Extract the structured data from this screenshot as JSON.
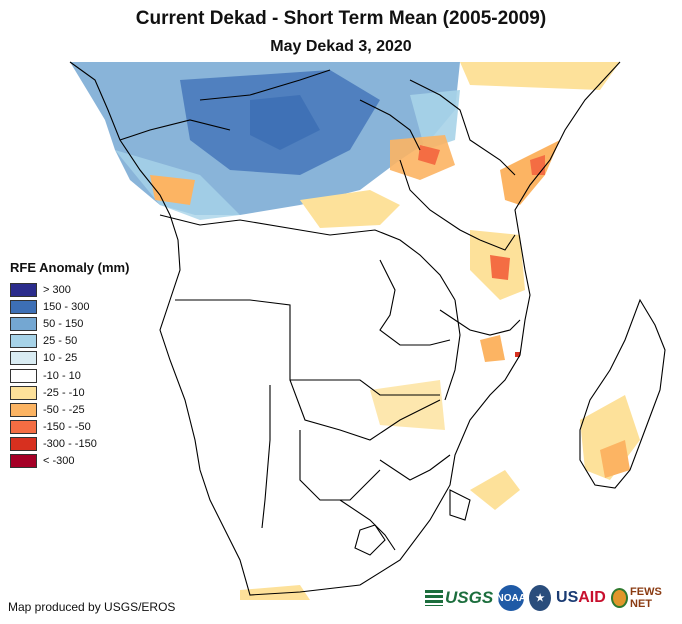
{
  "title": "Current Dekad - Short Term Mean (2005-2009)",
  "subtitle": "May Dekad 3, 2020",
  "legend": {
    "title": "RFE Anomaly (mm)",
    "items": [
      {
        "label": "> 300",
        "color": "#2b2c8c"
      },
      {
        "label": "150 - 300",
        "color": "#3d6fb5"
      },
      {
        "label": "50 - 150",
        "color": "#74a7d2"
      },
      {
        "label": "25 - 50",
        "color": "#a7d3e8"
      },
      {
        "label": "10 - 25",
        "color": "#d9ecf3"
      },
      {
        "label": "-10 - 10",
        "color": "#ffffff"
      },
      {
        "label": "-25 - -10",
        "color": "#fde19a"
      },
      {
        "label": "-50 - -25",
        "color": "#fcb463"
      },
      {
        "label": "-150 - -50",
        "color": "#f46d43"
      },
      {
        "label": "-300 - -150",
        "color": "#d7301f"
      },
      {
        "label": "< -300",
        "color": "#a50026"
      }
    ]
  },
  "credit": "Map produced by USGS/EROS",
  "logos": {
    "usgs": "USGS",
    "noaa": "NOAA",
    "usaid_a": "US",
    "usaid_b": "AID",
    "fews": "FEWS NET"
  }
}
